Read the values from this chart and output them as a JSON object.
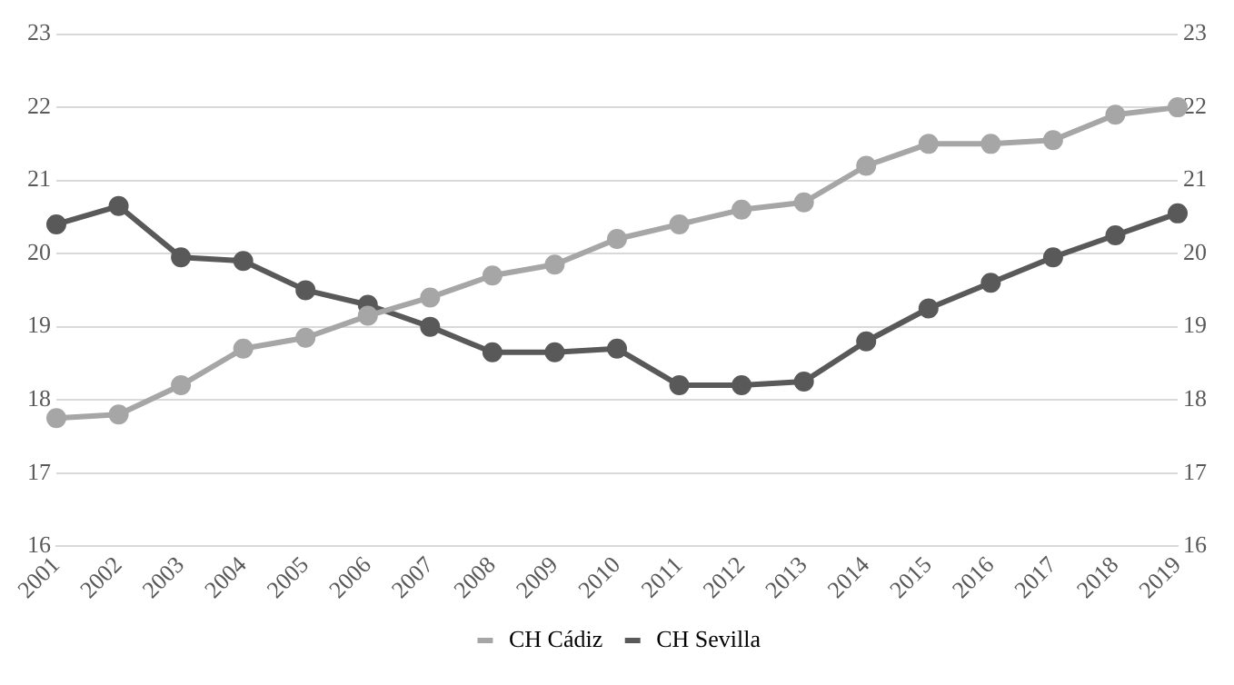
{
  "chart_data": {
    "type": "line",
    "categories": [
      "2001",
      "2002",
      "2003",
      "2004",
      "2005",
      "2006",
      "2007",
      "2008",
      "2009",
      "2010",
      "2011",
      "2012",
      "2013",
      "2014",
      "2015",
      "2016",
      "2017",
      "2018",
      "2019"
    ],
    "series": [
      {
        "name": "CH Cádiz",
        "color": "#a6a6a6",
        "values": [
          17.75,
          17.8,
          18.2,
          18.7,
          18.85,
          19.15,
          19.4,
          19.7,
          19.85,
          20.2,
          20.4,
          20.6,
          20.7,
          21.2,
          21.5,
          21.5,
          21.55,
          21.9,
          22.0
        ]
      },
      {
        "name": "CH Sevilla",
        "color": "#595959",
        "values": [
          20.4,
          20.65,
          19.95,
          19.9,
          19.5,
          19.3,
          19.0,
          18.65,
          18.65,
          18.7,
          18.2,
          18.2,
          18.25,
          18.8,
          19.25,
          19.6,
          19.95,
          20.25,
          20.55
        ]
      }
    ],
    "ylim": [
      16,
      23
    ],
    "yticks": [
      16,
      17,
      18,
      19,
      20,
      21,
      22,
      23
    ],
    "y2lim": [
      16,
      23
    ],
    "y2ticks": [
      16,
      17,
      18,
      19,
      20,
      21,
      22,
      23
    ],
    "grid": "y",
    "legend": "bottom",
    "marker": "circle",
    "line_style": "solid"
  }
}
